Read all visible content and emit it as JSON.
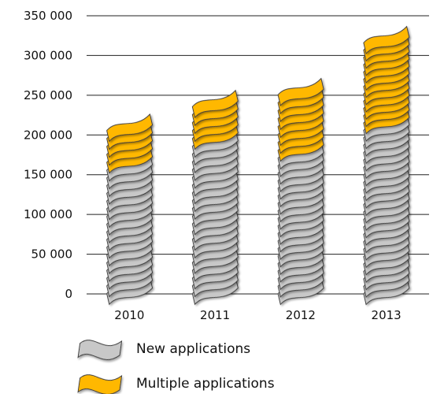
{
  "chart_data": {
    "type": "bar",
    "stacked": true,
    "categories": [
      "2010",
      "2011",
      "2012",
      "2013"
    ],
    "series": [
      {
        "name": "New applications",
        "values": [
          165000,
          195000,
          180000,
          215000
        ],
        "color": "#c8c8c8"
      },
      {
        "name": "Multiple applications",
        "values": [
          50000,
          50000,
          80000,
          110000
        ],
        "color": "#ffb800"
      }
    ],
    "y_ticks": [
      "0",
      "50 000",
      "100 000",
      "150 000",
      "200 000",
      "250 000",
      "300 000",
      "350 000"
    ],
    "ylim": [
      0,
      350000
    ],
    "grid": true,
    "legend_position": "bottom"
  }
}
